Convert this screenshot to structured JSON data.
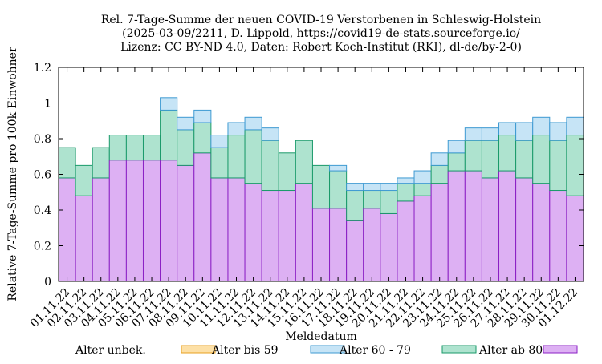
{
  "chart_data": {
    "type": "bar",
    "title_lines": [
      "Rel. 7-Tage-Summe der neuen COVID-19 Verstorbenen in Schleswig-Holstein",
      "(2025-03-09/2211, D. Lippold, https://covid19-de-stats.sourceforge.io/",
      "Lizenz: CC BY-ND 4.0, Daten: Robert Koch-Institut (RKI), dl-de/by-2-0)"
    ],
    "xlabel": "Meldedatum",
    "ylabel": "Relative 7-Tage-Summe pro 100k Einwohner",
    "ylim": [
      0,
      1.2
    ],
    "yticks": [
      "0",
      "0.2",
      "0.4",
      "0.6",
      "0.8",
      "1",
      "1.2"
    ],
    "stacked": true,
    "grid": false,
    "legend_position": "bottom",
    "categories": [
      "01.11.22",
      "02.11.22",
      "03.11.22",
      "04.11.22",
      "05.11.22",
      "06.11.22",
      "07.11.22",
      "08.11.22",
      "09.11.22",
      "10.11.22",
      "11.11.22",
      "12.11.22",
      "13.11.22",
      "14.11.22",
      "15.11.22",
      "16.11.22",
      "17.11.22",
      "18.11.22",
      "19.11.22",
      "20.11.22",
      "21.11.22",
      "22.11.22",
      "23.11.22",
      "24.11.22",
      "25.11.22",
      "26.11.22",
      "27.11.22",
      "28.11.22",
      "29.11.22",
      "30.11.22",
      "01.12.22"
    ],
    "series": [
      {
        "name": "Alter ab 80",
        "color": "#ddb0f3",
        "stroke": "#8b1fc4",
        "values": [
          0.58,
          0.48,
          0.58,
          0.68,
          0.68,
          0.68,
          0.68,
          0.65,
          0.72,
          0.58,
          0.58,
          0.55,
          0.51,
          0.51,
          0.55,
          0.41,
          0.41,
          0.34,
          0.41,
          0.38,
          0.45,
          0.48,
          0.55,
          0.62,
          0.62,
          0.58,
          0.62,
          0.58,
          0.55,
          0.51,
          0.48
        ]
      },
      {
        "name": "Alter 60 - 79",
        "color": "#aee3cf",
        "stroke": "#1a9a6a",
        "values": [
          0.17,
          0.17,
          0.17,
          0.14,
          0.14,
          0.14,
          0.28,
          0.2,
          0.17,
          0.17,
          0.24,
          0.3,
          0.28,
          0.21,
          0.24,
          0.24,
          0.21,
          0.17,
          0.1,
          0.13,
          0.1,
          0.07,
          0.1,
          0.1,
          0.17,
          0.21,
          0.2,
          0.21,
          0.27,
          0.28,
          0.34
        ]
      },
      {
        "name": "Alter bis 59",
        "color": "#c6e4f6",
        "stroke": "#3e9ad2",
        "values": [
          0,
          0,
          0,
          0,
          0,
          0,
          0.07,
          0.07,
          0.07,
          0.07,
          0.07,
          0.07,
          0.07,
          0,
          0,
          0,
          0.03,
          0.04,
          0.04,
          0.04,
          0.03,
          0.07,
          0.07,
          0.07,
          0.07,
          0.07,
          0.07,
          0.1,
          0.1,
          0.1,
          0.1
        ]
      },
      {
        "name": "Alter unbek.",
        "color": "#fde0a6",
        "stroke": "#e8a020",
        "values": [
          0,
          0,
          0,
          0,
          0,
          0,
          0,
          0,
          0,
          0,
          0,
          0,
          0,
          0,
          0,
          0,
          0,
          0,
          0,
          0,
          0,
          0,
          0,
          0,
          0,
          0,
          0,
          0,
          0,
          0,
          0
        ]
      }
    ],
    "legend_order": [
      "Alter unbek.",
      "Alter bis 59",
      "Alter 60 - 79",
      "Alter ab 80"
    ]
  }
}
